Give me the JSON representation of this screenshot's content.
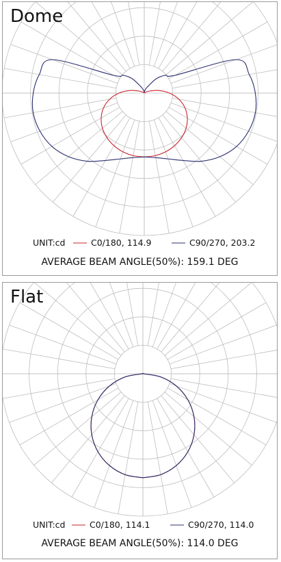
{
  "chart_data": [
    {
      "type": "polar",
      "title": "Dome",
      "unit_label": "UNIT:cd",
      "angles_deg": [
        0,
        10,
        20,
        30,
        40,
        50,
        60,
        70,
        80,
        90,
        100,
        110,
        120,
        130,
        140,
        150,
        160,
        170,
        180
      ],
      "series": [
        {
          "name": "C0/180, 114.9",
          "color": "#c8232c",
          "values": [
            114.9,
            114.3,
            112.4,
            109.2,
            104.6,
            98.3,
            89.6,
            78.1,
            63.2,
            45.5,
            26.8,
            11.2,
            4.1,
            2.6,
            1.6,
            0.9,
            0.4,
            0.2,
            0.0
          ]
        },
        {
          "name": "C90/270, 203.2",
          "color": "#2a2f6e",
          "values": [
            114.9,
            118.0,
            126.0,
            140.0,
            160.0,
            178.0,
            192.0,
            200.0,
            203.2,
            200.0,
            192.0,
            176.0,
            64.0,
            50.0,
            34.0,
            15.0,
            8.0,
            4.0,
            2.0
          ]
        }
      ],
      "beam_angle_text": "AVERAGE BEAM ANGLE(50%): 159.1 DEG",
      "grid": true
    },
    {
      "type": "polar",
      "title": "Flat",
      "unit_label": "UNIT:cd",
      "angles_deg": [
        0,
        10,
        20,
        30,
        40,
        50,
        60,
        70,
        80,
        90,
        100,
        110,
        120,
        130,
        140,
        150,
        160,
        170,
        180
      ],
      "series": [
        {
          "name": "C0/180, 114.1",
          "color": "#c8232c",
          "values": [
            114.1,
            112.4,
            107.2,
            98.8,
            87.4,
            73.3,
            57.0,
            39.0,
            19.8,
            0.6,
            0.0,
            0.0,
            0.0,
            0.0,
            0.0,
            0.0,
            0.0,
            0.0,
            0.0
          ]
        },
        {
          "name": "C90/270, 114.0",
          "color": "#2a2f6e",
          "values": [
            114.0,
            112.3,
            107.1,
            98.7,
            87.3,
            73.2,
            56.9,
            38.9,
            19.7,
            0.5,
            0.0,
            0.0,
            0.0,
            0.0,
            0.0,
            0.0,
            0.0,
            0.0,
            0.0
          ]
        }
      ],
      "beam_angle_text": "AVERAGE BEAM ANGLE(50%): 114.0 DEG",
      "grid": true
    }
  ]
}
